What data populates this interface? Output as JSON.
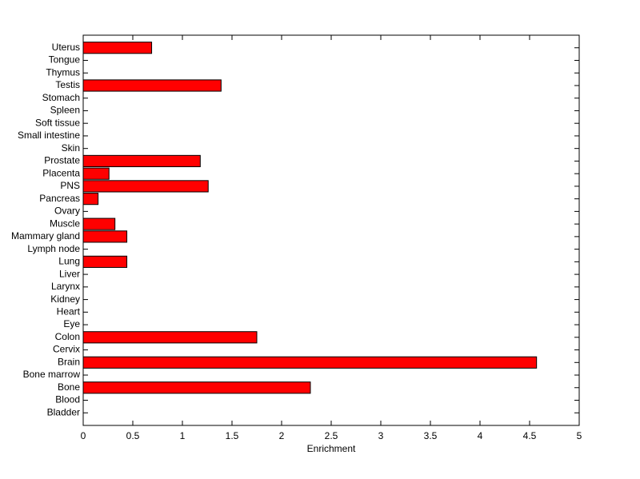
{
  "chart_data": {
    "type": "barh",
    "xlabel": "Enrichment",
    "categories": [
      "Bladder",
      "Blood",
      "Bone",
      "Bone marrow",
      "Brain",
      "Cervix",
      "Colon",
      "Eye",
      "Heart",
      "Kidney",
      "Larynx",
      "Liver",
      "Lung",
      "Lymph node",
      "Mammary gland",
      "Muscle",
      "Ovary",
      "Pancreas",
      "PNS",
      "Placenta",
      "Prostate",
      "Skin",
      "Small intestine",
      "Soft tissue",
      "Spleen",
      "Stomach",
      "Testis",
      "Thymus",
      "Tongue",
      "Uterus"
    ],
    "values": [
      0,
      0,
      2.29,
      0,
      4.57,
      0,
      1.75,
      0,
      0,
      0,
      0,
      0,
      0.44,
      0,
      0.44,
      0.32,
      0,
      0.15,
      1.26,
      0.26,
      1.18,
      0,
      0,
      0,
      0,
      0,
      1.39,
      0,
      0,
      0.69
    ],
    "color": "#ff0000",
    "xlim": [
      0,
      5
    ],
    "xticks": [
      0,
      0.5,
      1,
      1.5,
      2,
      2.5,
      3,
      3.5,
      4,
      4.5,
      5
    ],
    "grid": false
  }
}
